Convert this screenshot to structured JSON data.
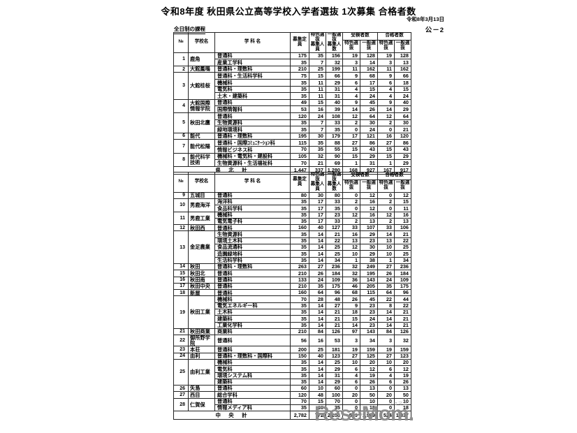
{
  "page": {
    "title": "令和8年度 秋田県公立高等学校入学者選抜 1次募集 合格者数",
    "date": "令和8年3月13日",
    "doc_number": "公－2",
    "section_label": "全日制の課程"
  },
  "columns": {
    "no": "№",
    "school": "学校名",
    "department": "学 科 名",
    "capacity": "募集定員",
    "tokushoku_quota": "特色選抜\n募集人員",
    "ippan_quota": "一般選抜\n募集人数",
    "examinees_group": "受検者数",
    "passers_group": "合格者数",
    "tokushoku": "特色選抜",
    "ippan": "一般選抜"
  },
  "table1": {
    "schools": [
      {
        "no": "1",
        "name": "鹿角",
        "departments": [
          {
            "name": "普通科",
            "values": [
              "175",
              "35",
              "156",
              "19",
              "128",
              "19",
              "128"
            ]
          },
          {
            "name": "産業工学科",
            "values": [
              "35",
              "7",
              "32",
              "3",
              "14",
              "3",
              "13"
            ]
          }
        ]
      },
      {
        "no": "2",
        "name": "大館鳳鳴",
        "departments": [
          {
            "name": "普通科・理数科",
            "values": [
              "210",
              "25",
              "199",
              "11",
              "162",
              "11",
              "162"
            ]
          }
        ]
      },
      {
        "no": "3",
        "name": "大館桂桜",
        "departments": [
          {
            "name": "普通科・生活科学科",
            "values": [
              "75",
              "15",
              "66",
              "9",
              "68",
              "9",
              "66"
            ]
          },
          {
            "name": "機械科",
            "values": [
              "35",
              "11",
              "29",
              "6",
              "17",
              "6",
              "18"
            ]
          },
          {
            "name": "電気科",
            "values": [
              "35",
              "11",
              "31",
              "4",
              "15",
              "4",
              "15"
            ]
          },
          {
            "name": "土木・建築科",
            "values": [
              "35",
              "11",
              "31",
              "4",
              "24",
              "4",
              "24"
            ]
          }
        ]
      },
      {
        "no": "4",
        "name": "大館国際\n情報学院",
        "departments": [
          {
            "name": "普通科",
            "values": [
              "49",
              "15",
              "40",
              "9",
              "45",
              "9",
              "40"
            ]
          },
          {
            "name": "国際情報科",
            "values": [
              "53",
              "16",
              "39",
              "14",
              "26",
              "14",
              "29"
            ]
          }
        ]
      },
      {
        "no": "5",
        "name": "秋田北鷹",
        "departments": [
          {
            "name": "普通科",
            "values": [
              "120",
              "24",
              "108",
              "12",
              "64",
              "12",
              "64"
            ]
          },
          {
            "name": "生物資源科",
            "values": [
              "35",
              "7",
              "33",
              "2",
              "30",
              "2",
              "30"
            ]
          },
          {
            "name": "緑地環境科",
            "values": [
              "35",
              "7",
              "35",
              "0",
              "24",
              "0",
              "21"
            ]
          }
        ]
      },
      {
        "no": "6",
        "name": "能代",
        "departments": [
          {
            "name": "普通科・理数科",
            "values": [
              "195",
              "30",
              "179",
              "17",
              "121",
              "16",
              "120"
            ]
          }
        ]
      },
      {
        "no": "7",
        "name": "能代松陽",
        "departments": [
          {
            "name": "普通科・国際ｺﾐｭﾆｹｰｼｮﾝ科",
            "values": [
              "115",
              "35",
              "88",
              "27",
              "86",
              "27",
              "86"
            ]
          },
          {
            "name": "情報ビジネス科",
            "values": [
              "70",
              "35",
              "55",
              "15",
              "43",
              "15",
              "43"
            ]
          }
        ]
      },
      {
        "no": "8",
        "name": "能代科学\n技術",
        "departments": [
          {
            "name": "機械科・電気科・建設科",
            "values": [
              "105",
              "32",
              "90",
              "15",
              "29",
              "15",
              "29"
            ]
          },
          {
            "name": "生物資源科・生活福祉科",
            "values": [
              "70",
              "21",
              "69",
              "1",
              "31",
              "1",
              "29"
            ]
          }
        ]
      }
    ],
    "total": {
      "label": "県　北　計",
      "values": [
        "1,447",
        "337",
        "1,280",
        "168",
        "927",
        "167",
        "917"
      ]
    }
  },
  "table2": {
    "schools": [
      {
        "no": "9",
        "name": "五城目",
        "departments": [
          {
            "name": "普通科",
            "values": [
              "80",
              "30",
              "80",
              "0",
              "12",
              "0",
              "12"
            ]
          }
        ]
      },
      {
        "no": "10",
        "name": "男鹿海洋",
        "departments": [
          {
            "name": "海洋科",
            "values": [
              "35",
              "17",
              "33",
              "2",
              "16",
              "2",
              "15"
            ]
          },
          {
            "name": "食品科学科",
            "values": [
              "35",
              "17",
              "35",
              "0",
              "12",
              "0",
              "11"
            ]
          }
        ]
      },
      {
        "no": "11",
        "name": "男鹿工業",
        "departments": [
          {
            "name": "機械科",
            "values": [
              "35",
              "17",
              "23",
              "12",
              "16",
              "12",
              "16"
            ]
          },
          {
            "name": "電気電子科",
            "values": [
              "35",
              "17",
              "33",
              "2",
              "13",
              "2",
              "13"
            ]
          }
        ]
      },
      {
        "no": "12",
        "name": "秋田西",
        "departments": [
          {
            "name": "普通科",
            "values": [
              "160",
              "40",
              "127",
              "33",
              "107",
              "33",
              "106"
            ]
          }
        ]
      },
      {
        "no": "13",
        "name": "金足農業",
        "departments": [
          {
            "name": "生物資源科",
            "values": [
              "35",
              "14",
              "21",
              "16",
              "29",
              "14",
              "21"
            ]
          },
          {
            "name": "環境土木科",
            "values": [
              "35",
              "14",
              "22",
              "13",
              "23",
              "13",
              "22"
            ]
          },
          {
            "name": "食品流通科",
            "values": [
              "35",
              "14",
              "25",
              "12",
              "30",
              "10",
              "25"
            ]
          },
          {
            "name": "造園緑地科",
            "values": [
              "35",
              "14",
              "25",
              "10",
              "29",
              "10",
              "25"
            ]
          },
          {
            "name": "生活科学科",
            "values": [
              "35",
              "14",
              "34",
              "1",
              "38",
              "1",
              "34"
            ]
          }
        ]
      },
      {
        "no": "14",
        "name": "秋田",
        "departments": [
          {
            "name": "普通科・理数科",
            "values": [
              "263",
              "27",
              "236",
              "32",
              "249",
              "27",
              "236"
            ]
          }
        ]
      },
      {
        "no": "15",
        "name": "秋田北",
        "departments": [
          {
            "name": "普通科",
            "values": [
              "210",
              "26",
              "184",
              "32",
              "195",
              "26",
              "184"
            ]
          }
        ]
      },
      {
        "no": "16",
        "name": "秋田南",
        "departments": [
          {
            "name": "普通科",
            "values": [
              "133",
              "24",
              "109",
              "36",
              "143",
              "24",
              "109"
            ]
          }
        ]
      },
      {
        "no": "17",
        "name": "秋田中央",
        "departments": [
          {
            "name": "普通科",
            "values": [
              "210",
              "35",
              "175",
              "46",
              "205",
              "35",
              "175"
            ]
          }
        ]
      },
      {
        "no": "18",
        "name": "新屋",
        "departments": [
          {
            "name": "普通科",
            "values": [
              "160",
              "64",
              "96",
              "68",
              "115",
              "64",
              "96"
            ]
          }
        ]
      },
      {
        "no": "19",
        "name": "秋田工業",
        "departments": [
          {
            "name": "機械科",
            "values": [
              "70",
              "28",
              "48",
              "26",
              "45",
              "22",
              "44"
            ]
          },
          {
            "name": "電気エネルギー科",
            "values": [
              "35",
              "14",
              "27",
              "9",
              "23",
              "8",
              "22"
            ]
          },
          {
            "name": "土木科",
            "values": [
              "35",
              "14",
              "21",
              "18",
              "23",
              "14",
              "21"
            ]
          },
          {
            "name": "建築科",
            "values": [
              "35",
              "14",
              "21",
              "15",
              "24",
              "14",
              "21"
            ]
          },
          {
            "name": "工業化学科",
            "values": [
              "35",
              "14",
              "21",
              "14",
              "23",
              "14",
              "21"
            ]
          }
        ]
      },
      {
        "no": "21",
        "name": "秋田商業",
        "departments": [
          {
            "name": "商業科",
            "values": [
              "210",
              "84",
              "126",
              "97",
              "143",
              "84",
              "126"
            ]
          }
        ]
      },
      {
        "no": "22",
        "name": "御所野学院",
        "departments": [
          {
            "name": "普通科",
            "values": [
              "56",
              "16",
              "53",
              "3",
              "34",
              "3",
              "32"
            ]
          }
        ]
      },
      {
        "no": "23",
        "name": "本荘",
        "departments": [
          {
            "name": "普通科",
            "values": [
              "200",
              "25",
              "181",
              "19",
              "159",
              "19",
              "159"
            ]
          }
        ]
      },
      {
        "no": "24",
        "name": "由利",
        "departments": [
          {
            "name": "普通科・理数科・国際科",
            "values": [
              "150",
              "40",
              "123",
              "27",
              "125",
              "27",
              "123"
            ]
          }
        ]
      },
      {
        "no": "25",
        "name": "由利工業",
        "departments": [
          {
            "name": "機械科",
            "values": [
              "35",
              "14",
              "25",
              "10",
              "20",
              "10",
              "20"
            ]
          },
          {
            "name": "電気科",
            "values": [
              "35",
              "14",
              "29",
              "6",
              "12",
              "6",
              "12"
            ]
          },
          {
            "name": "環境システム科",
            "values": [
              "35",
              "14",
              "31",
              "4",
              "19",
              "4",
              "19"
            ]
          },
          {
            "name": "建築科",
            "values": [
              "35",
              "14",
              "29",
              "6",
              "26",
              "6",
              "26"
            ]
          }
        ]
      },
      {
        "no": "26",
        "name": "矢島",
        "departments": [
          {
            "name": "普通科",
            "values": [
              "60",
              "10",
              "60",
              "0",
              "13",
              "0",
              "13"
            ]
          }
        ]
      },
      {
        "no": "27",
        "name": "西目",
        "departments": [
          {
            "name": "総合学科",
            "values": [
              "120",
              "48",
              "100",
              "20",
              "50",
              "20",
              "50"
            ]
          }
        ]
      },
      {
        "no": "28",
        "name": "仁賀保",
        "departments": [
          {
            "name": "普通科",
            "values": [
              "70",
              "15",
              "70",
              "0",
              "10",
              "0",
              "10"
            ]
          },
          {
            "name": "情報メディア科",
            "values": [
              "35",
              "10",
              "35",
              "0",
              "18",
              "0",
              "18"
            ]
          }
        ]
      }
    ],
    "total": {
      "label": "中　央　計",
      "values": [
        "2,782",
        "772",
        "2,258",
        "589",
        "1,999",
        "524",
        "1,837"
      ]
    }
  },
  "watermark": {
    "text": "ReseMom.",
    "ruby": "リセマム"
  }
}
